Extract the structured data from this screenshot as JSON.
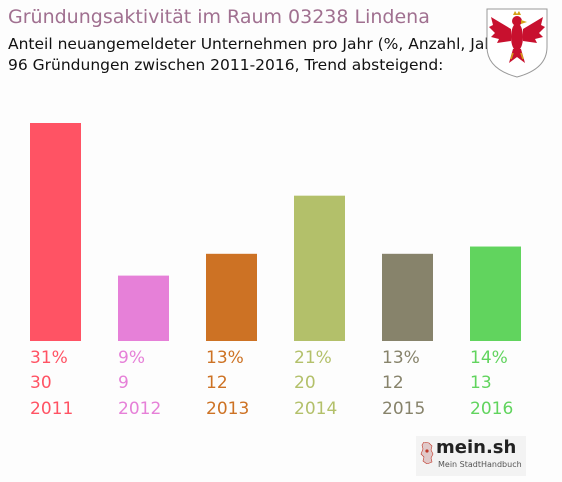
{
  "title": "Gründungsaktivität im Raum 03238 Lindena",
  "subtitle_line1": "Anteil neuangemeldeter Unternehmen pro Jahr (%, Anzahl, Jahr)",
  "subtitle_line2": "96 Gründungen zwischen 2011-2016, Trend absteigend:",
  "logo": {
    "name": "mein.sh",
    "tagline": "Mein StadtHandbuch",
    "icon": "germany-map-icon"
  },
  "crest": {
    "icon": "brandenburg-eagle-crest-icon",
    "colors": {
      "eagle": "#c8102e",
      "shield": "#ffffff",
      "gold": "#d4a017"
    }
  },
  "chart_data": {
    "type": "bar",
    "categories": [
      "2011",
      "2012",
      "2013",
      "2014",
      "2015",
      "2016"
    ],
    "values": [
      30,
      9,
      12,
      20,
      12,
      13
    ],
    "percent_labels": [
      "31%",
      "9%",
      "13%",
      "21%",
      "13%",
      "14%"
    ],
    "colors": [
      "#ff5364",
      "#e680d8",
      "#cd7224",
      "#b3c06a",
      "#87836b",
      "#61d45e"
    ],
    "ylim": [
      0,
      30
    ],
    "grid": false,
    "legend": "none"
  }
}
